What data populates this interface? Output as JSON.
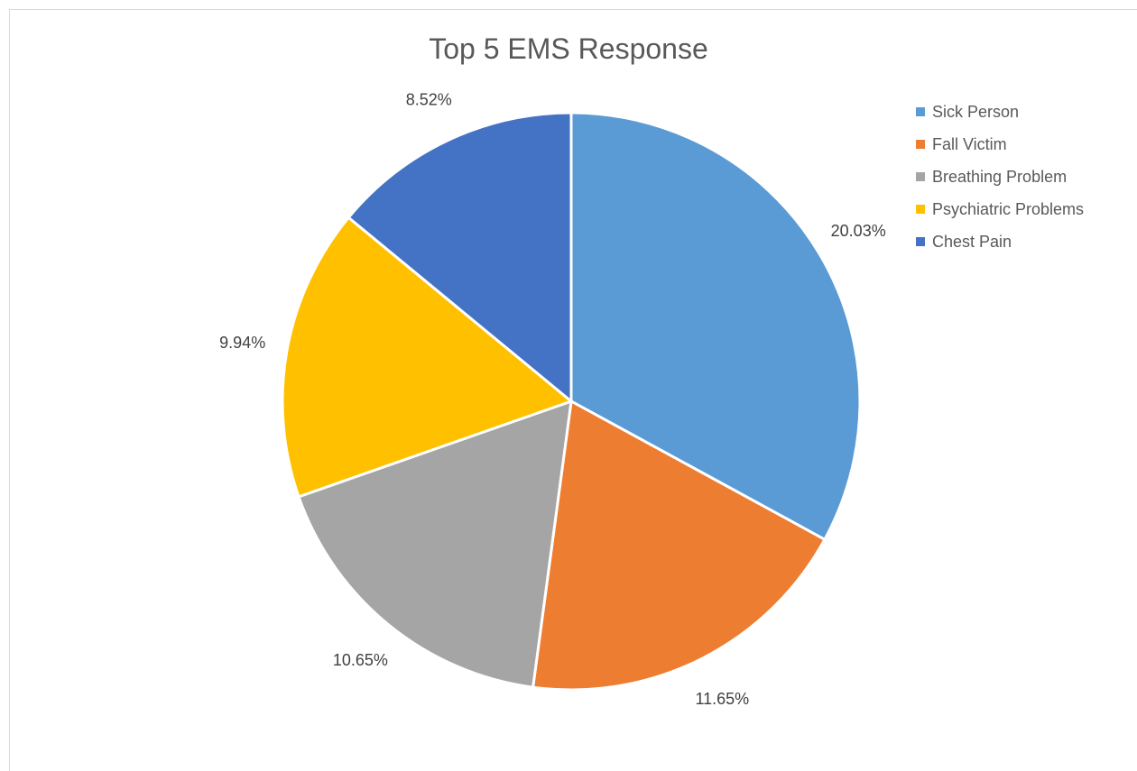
{
  "chart_data": {
    "type": "pie",
    "title": "Top 5 EMS Response",
    "legend_position": "right",
    "slices": [
      {
        "label": "Sick Person",
        "value": 20.03,
        "display": "20.03%",
        "color": "#5B9BD5"
      },
      {
        "label": "Fall Victim",
        "value": 11.65,
        "display": "11.65%",
        "color": "#ED7D31"
      },
      {
        "label": "Breathing Problem",
        "value": 10.65,
        "display": "10.65%",
        "color": "#A5A5A5"
      },
      {
        "label": "Psychiatric Problems",
        "value": 9.94,
        "display": "9.94%",
        "color": "#FFC000"
      },
      {
        "label": "Chest Pain",
        "value": 8.52,
        "display": "8.52%",
        "color": "#4472C4"
      }
    ]
  }
}
